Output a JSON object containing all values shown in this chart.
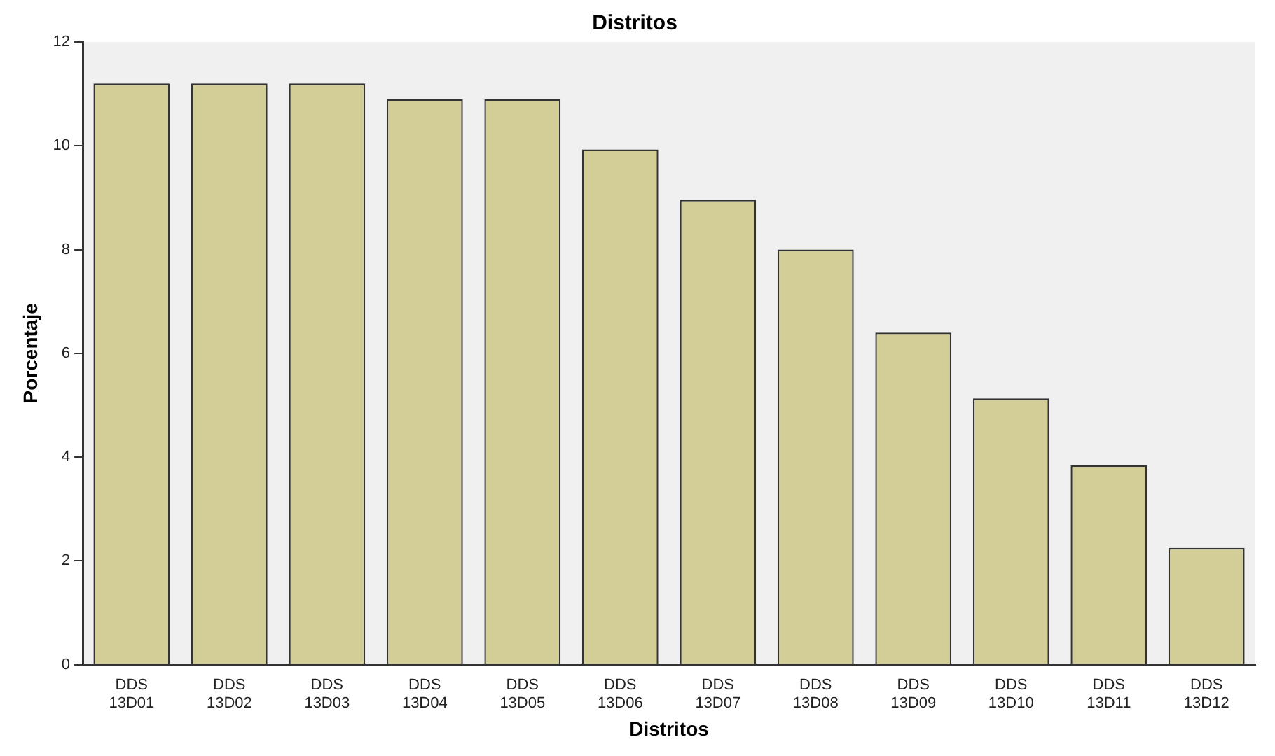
{
  "chart_data": {
    "type": "bar",
    "title": "Distritos",
    "xlabel": "Distritos",
    "ylabel": "Porcentaje",
    "categories": [
      "DDS 13D01",
      "DDS 13D02",
      "DDS 13D03",
      "DDS 13D04",
      "DDS 13D05",
      "DDS 13D06",
      "DDS 13D07",
      "DDS 13D08",
      "DDS 13D09",
      "DDS 13D10",
      "DDS 13D11",
      "DDS 13D12"
    ],
    "values": [
      11.2,
      11.2,
      11.2,
      10.9,
      10.9,
      9.93,
      8.96,
      8.0,
      6.4,
      5.13,
      3.84,
      2.25
    ],
    "color": "#d3ce97",
    "ylim": [
      0,
      12
    ],
    "yticks": [
      0,
      2,
      4,
      6,
      8,
      10,
      12
    ],
    "grid": false
  }
}
